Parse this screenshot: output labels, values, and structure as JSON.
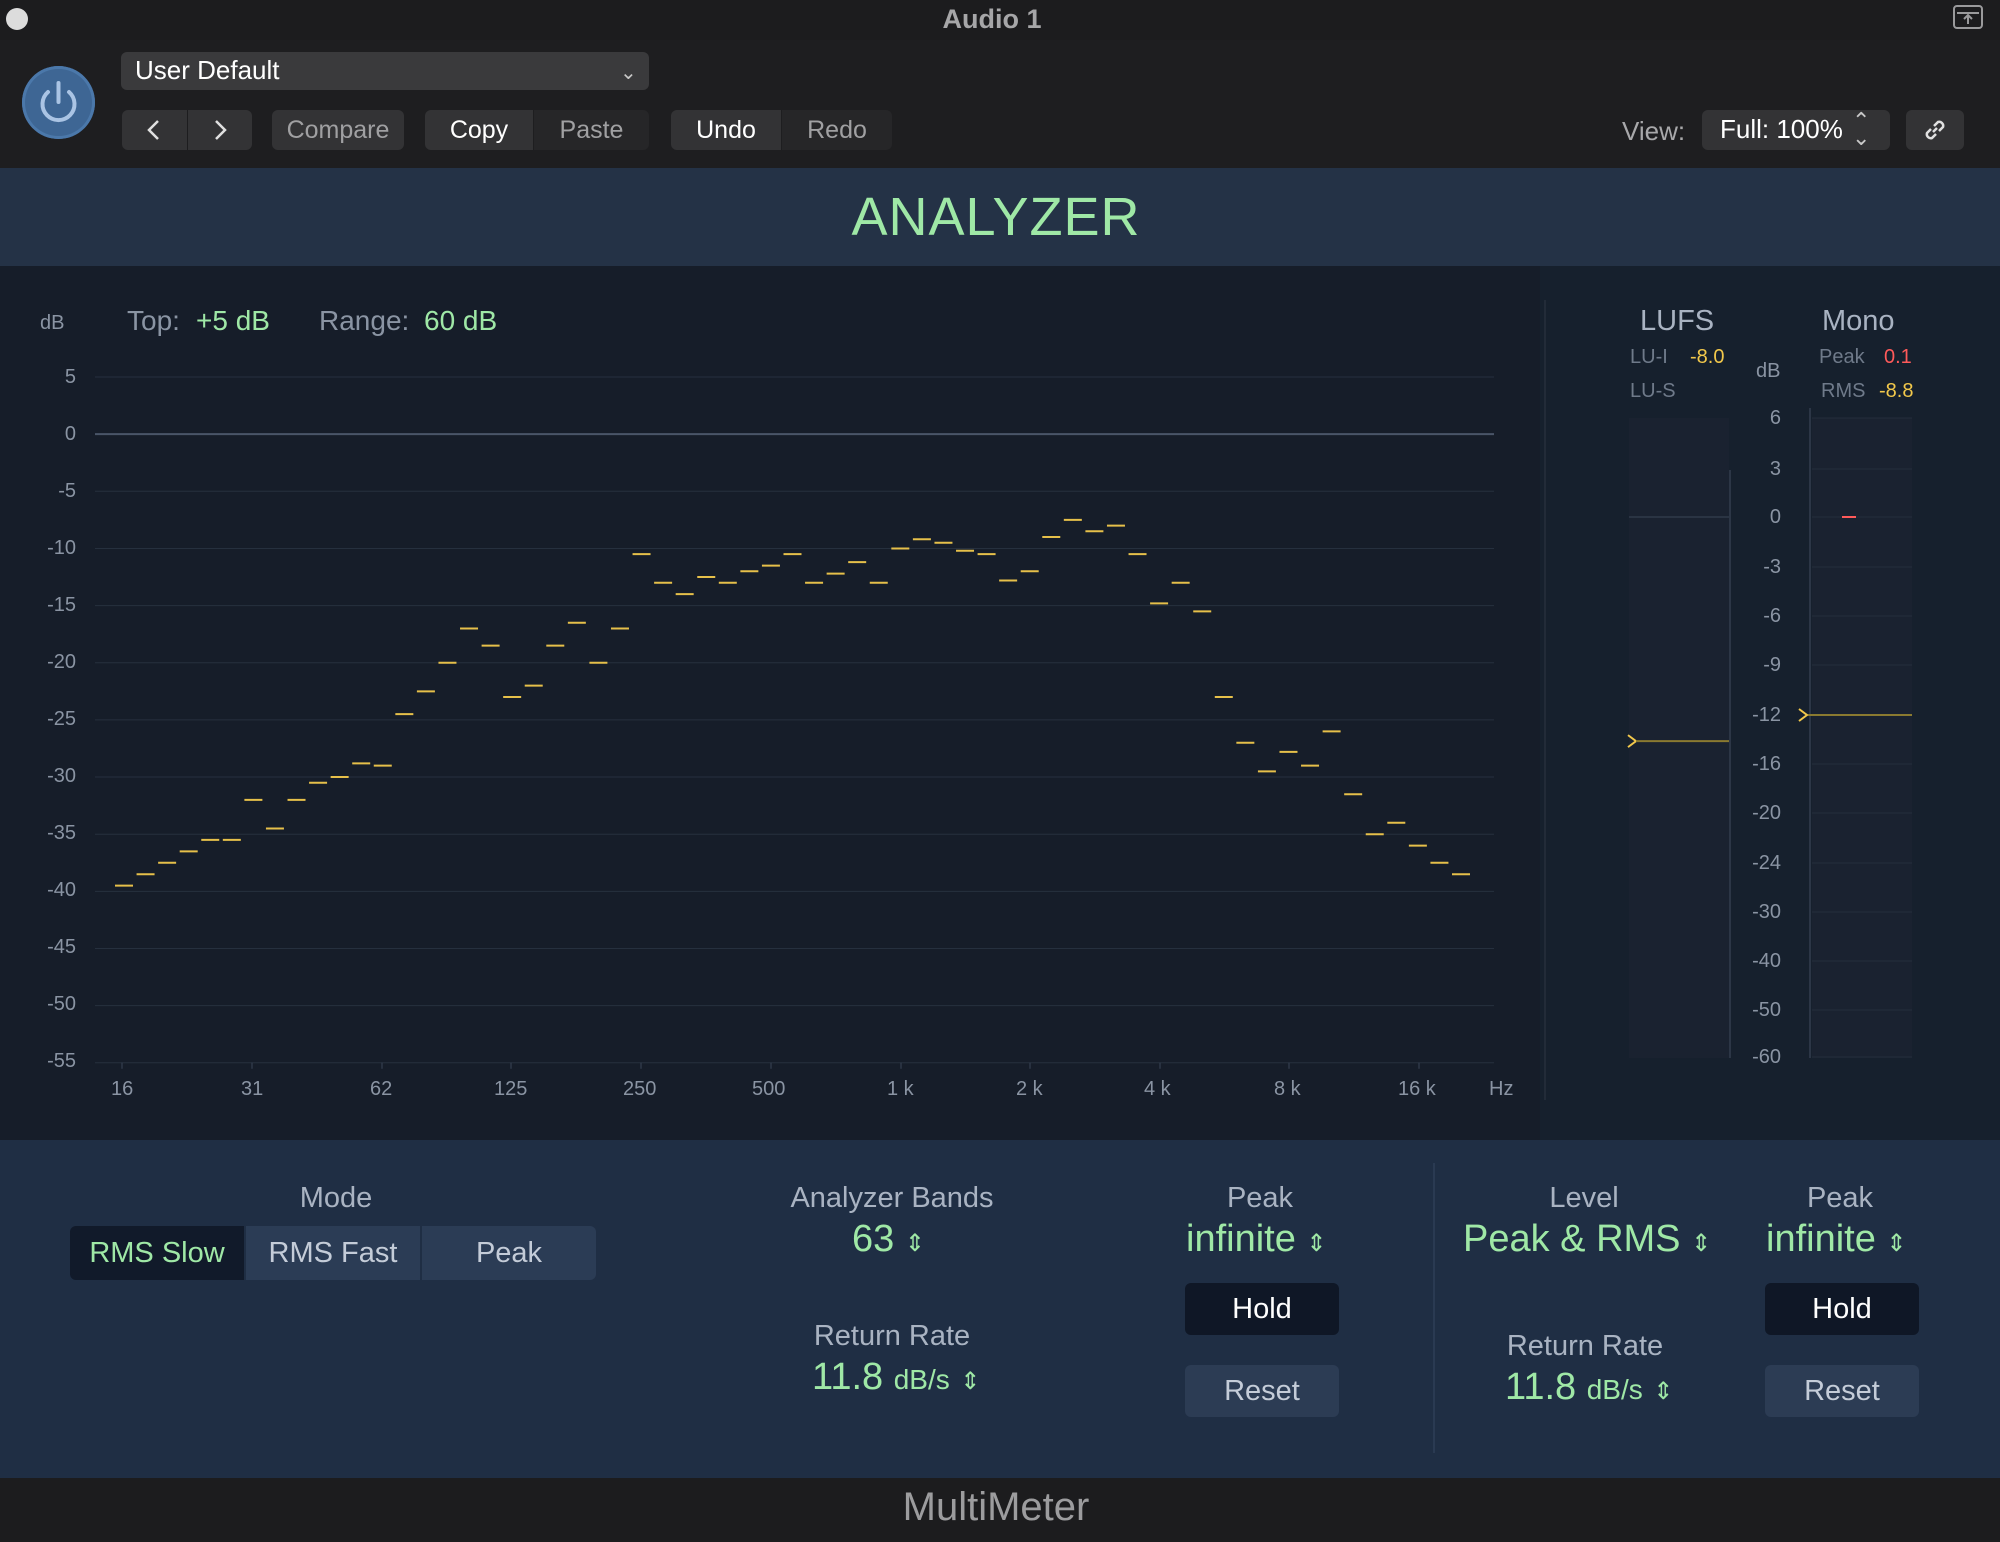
{
  "window": {
    "title": "Audio 1"
  },
  "header": {
    "preset": "User Default",
    "compare": "Compare",
    "copy": "Copy",
    "paste": "Paste",
    "undo": "Undo",
    "redo": "Redo",
    "view_label": "View:",
    "view_value": "Full: 100%"
  },
  "plugin": {
    "section_title": "ANALYZER",
    "footer_title": "MultiMeter"
  },
  "analyzer": {
    "db_unit": "dB",
    "top_label": "Top:",
    "top_value": "+5 dB",
    "range_label": "Range:",
    "range_value": "60 dB",
    "y_ticks": [
      "5",
      "0",
      "-5",
      "-10",
      "-15",
      "-20",
      "-25",
      "-30",
      "-35",
      "-40",
      "-45",
      "-50",
      "-55"
    ],
    "x_ticks": [
      "16",
      "31",
      "62",
      "125",
      "250",
      "500",
      "1 k",
      "2 k",
      "4 k",
      "8 k",
      "16 k"
    ],
    "x_unit": "Hz"
  },
  "meters": {
    "lufs_title": "LUFS",
    "mono_title": "Mono",
    "lui_label": "LU-I",
    "lui_value": "-8.0",
    "lus_label": "LU-S",
    "db_unit": "dB",
    "peak_label": "Peak",
    "peak_value": "0.1",
    "rms_label": "RMS",
    "rms_value": "-8.8",
    "scale": [
      "6",
      "3",
      "0",
      "-3",
      "-6",
      "-9",
      "-12",
      "-16",
      "-20",
      "-24",
      "-30",
      "-40",
      "-50",
      "-60"
    ],
    "lufs_level": -12.5,
    "mono_rms_level": -12,
    "mono_peak_level": 0
  },
  "controls": {
    "mode_label": "Mode",
    "mode_options": [
      "RMS Slow",
      "RMS Fast",
      "Peak"
    ],
    "mode_selected": "RMS Slow",
    "bands_label": "Analyzer Bands",
    "bands_value": "63",
    "return_rate_label": "Return Rate",
    "return_rate_value": "11.8",
    "return_rate_unit": "dB/s",
    "peak_label": "Peak",
    "peak_value": "infinite",
    "hold": "Hold",
    "reset": "Reset",
    "level_label": "Level",
    "level_value": "Peak & RMS",
    "meter_return_rate_label": "Return Rate",
    "meter_return_rate_value": "11.8",
    "meter_return_rate_unit": "dB/s",
    "meter_peak_label": "Peak",
    "meter_peak_value": "infinite",
    "meter_hold": "Hold",
    "meter_reset": "Reset"
  },
  "colors": {
    "accent_green": "#9fe8a6",
    "bar_yellow": "#e6c04a",
    "peak_red": "#ff5a5a",
    "meter_yellow": "#f2c84b"
  },
  "chart_data": {
    "type": "line",
    "xlabel": "Hz",
    "ylabel": "dB",
    "ylim": [
      -55,
      5
    ],
    "x_scale": "log",
    "xlim_hz": [
      16,
      20000
    ],
    "grid": true,
    "series": [
      {
        "values": [
          -39.5,
          -38.5,
          -37.5,
          -36.5,
          -35.5,
          -35.5,
          -32,
          -34.5,
          -32,
          -30.5,
          -30,
          -28.8,
          -29,
          -24.5,
          -22.5,
          -20,
          -17,
          -18.5,
          -23,
          -22,
          -18.5,
          -16.5,
          -20,
          -17,
          -10.5,
          -13,
          -14,
          -12.5,
          -13,
          -12,
          -11.5,
          -10.5,
          -13,
          -12.2,
          -11.2,
          -13,
          -10,
          -9.2,
          -9.5,
          -10.2,
          -10.5,
          -12.8,
          -12,
          -9,
          -7.5,
          -8.5,
          -8,
          -10.5,
          -14.8,
          -13,
          -15.5,
          -23,
          -27,
          -29.5,
          -27.8,
          -29,
          -26,
          -31.5,
          -35,
          -34,
          -36,
          -37.5,
          -38.5
        ]
      }
    ]
  }
}
